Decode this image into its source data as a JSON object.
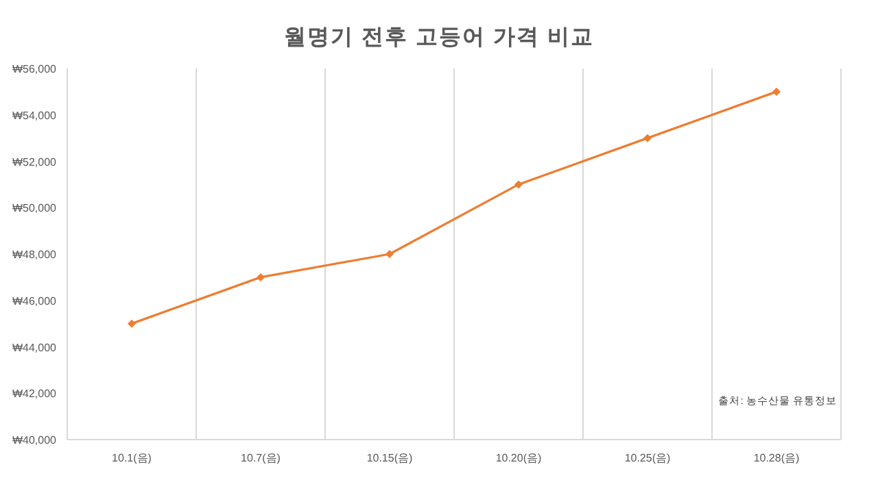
{
  "chart_data": {
    "type": "line",
    "title": "월명기 전후 고등어 가격 비교",
    "categories": [
      "10.1(음)",
      "10.7(음)",
      "10.15(음)",
      "10.20(음)",
      "10.25(음)",
      "10.28(음)"
    ],
    "series": [
      {
        "color": "#ed7d31",
        "values": [
          45000,
          47000,
          48000,
          51000,
          53000,
          55000
        ]
      }
    ],
    "ylim": [
      40000,
      56000
    ],
    "yticks": [
      {
        "value": 40000,
        "label": "₩40,000"
      },
      {
        "value": 42000,
        "label": "₩42,000"
      },
      {
        "value": 44000,
        "label": "₩44,000"
      },
      {
        "value": 46000,
        "label": "₩46,000"
      },
      {
        "value": 48000,
        "label": "₩48,000"
      },
      {
        "value": 50000,
        "label": "₩50,000"
      },
      {
        "value": 52000,
        "label": "₩52,000"
      },
      {
        "value": 54000,
        "label": "₩54,000"
      },
      {
        "value": 56000,
        "label": "₩56,000"
      }
    ],
    "grid": "x",
    "marker": "diamond",
    "line_style": "solid",
    "annotations": [
      "출처: 농수산물 유통정보"
    ]
  }
}
